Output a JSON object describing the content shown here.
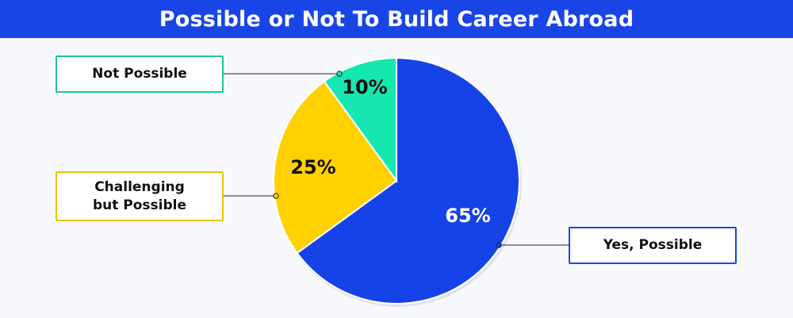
{
  "title": "Possible or Not To Build Career Abroad",
  "colors": {
    "title_bar": "#1a45e6",
    "background": "#f7f8fc"
  },
  "chart_data": {
    "type": "pie",
    "title": "Possible or Not To Build Career Abroad",
    "slices": [
      {
        "label": "Yes, Possible",
        "value": 65,
        "display": "65%",
        "color": "#1543e8",
        "label_color": "#ffffff",
        "border_color": "#1a45e6"
      },
      {
        "label": "Challenging\nbut Possible",
        "value": 25,
        "display": "25%",
        "color": "#ffd100",
        "label_color": "#111111",
        "border_color": "#e8c400"
      },
      {
        "label": "Not Possible",
        "value": 10,
        "display": "10%",
        "color": "#16e6b0",
        "label_color": "#111111",
        "border_color": "#19c99a"
      }
    ],
    "start_angle_deg": 0,
    "direction": "clockwise"
  }
}
